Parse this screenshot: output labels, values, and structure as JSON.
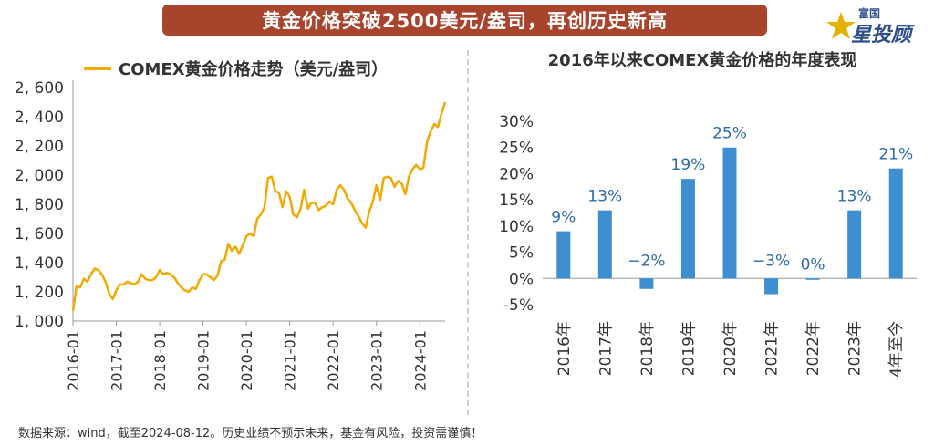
{
  "header": {
    "title": "黄金价格突破2500美元/盎司，再创历史新高"
  },
  "logo": {
    "top_text": "富国",
    "main_text": "星投顾",
    "icon": "star-icon"
  },
  "footer": {
    "note": "数据来源：wind，截至2024-08-12。历史业绩不预示未来，基金有风险，投资需谨慎！"
  },
  "chart_data": [
    {
      "type": "line",
      "title": "",
      "legend": [
        "COMEX黄金价格走势（美元/盎司）"
      ],
      "legend_position": "top",
      "xlabel": "",
      "ylabel": "",
      "ylim": [
        1000,
        2600
      ],
      "yticks": [
        1000,
        1200,
        1400,
        1600,
        1800,
        2000,
        2200,
        2400,
        2600
      ],
      "ytick_labels": [
        "1, 000",
        "1, 200",
        "1, 400",
        "1, 600",
        "1, 800",
        "2, 000",
        "2, 200",
        "2, 400",
        "2, 600"
      ],
      "xticks": [
        "2016-01",
        "2017-01",
        "2018-01",
        "2019-01",
        "2020-01",
        "2021-01",
        "2022-01",
        "2023-01",
        "2024-01"
      ],
      "grid": false,
      "color": "#f2a900",
      "series": [
        {
          "name": "COMEX黄金价格走势（美元/盎司）",
          "x": [
            "2016-01",
            "2016-02",
            "2016-03",
            "2016-04",
            "2016-05",
            "2016-06",
            "2016-07",
            "2016-08",
            "2016-09",
            "2016-10",
            "2016-11",
            "2016-12",
            "2017-01",
            "2017-02",
            "2017-03",
            "2017-04",
            "2017-05",
            "2017-06",
            "2017-07",
            "2017-08",
            "2017-09",
            "2017-10",
            "2017-11",
            "2017-12",
            "2018-01",
            "2018-02",
            "2018-03",
            "2018-04",
            "2018-05",
            "2018-06",
            "2018-07",
            "2018-08",
            "2018-09",
            "2018-10",
            "2018-11",
            "2018-12",
            "2019-01",
            "2019-02",
            "2019-03",
            "2019-04",
            "2019-05",
            "2019-06",
            "2019-07",
            "2019-08",
            "2019-09",
            "2019-10",
            "2019-11",
            "2019-12",
            "2020-01",
            "2020-02",
            "2020-03",
            "2020-04",
            "2020-05",
            "2020-06",
            "2020-07",
            "2020-08",
            "2020-09",
            "2020-10",
            "2020-11",
            "2020-12",
            "2021-01",
            "2021-02",
            "2021-03",
            "2021-04",
            "2021-05",
            "2021-06",
            "2021-07",
            "2021-08",
            "2021-09",
            "2021-10",
            "2021-11",
            "2021-12",
            "2022-01",
            "2022-02",
            "2022-03",
            "2022-04",
            "2022-05",
            "2022-06",
            "2022-07",
            "2022-08",
            "2022-09",
            "2022-10",
            "2022-11",
            "2022-12",
            "2023-01",
            "2023-02",
            "2023-03",
            "2023-04",
            "2023-05",
            "2023-06",
            "2023-07",
            "2023-08",
            "2023-09",
            "2023-10",
            "2023-11",
            "2023-12",
            "2024-01",
            "2024-02",
            "2024-03",
            "2024-04",
            "2024-05",
            "2024-06",
            "2024-07",
            "2024-08"
          ],
          "values": [
            1070,
            1240,
            1230,
            1290,
            1270,
            1320,
            1360,
            1350,
            1320,
            1270,
            1190,
            1150,
            1210,
            1250,
            1250,
            1270,
            1260,
            1250,
            1270,
            1320,
            1290,
            1280,
            1280,
            1300,
            1350,
            1320,
            1330,
            1320,
            1300,
            1260,
            1230,
            1210,
            1200,
            1230,
            1220,
            1280,
            1320,
            1320,
            1300,
            1280,
            1310,
            1410,
            1420,
            1530,
            1480,
            1510,
            1460,
            1520,
            1580,
            1600,
            1580,
            1700,
            1730,
            1780,
            1980,
            1990,
            1890,
            1880,
            1780,
            1890,
            1850,
            1730,
            1710,
            1770,
            1900,
            1770,
            1810,
            1810,
            1760,
            1780,
            1790,
            1820,
            1800,
            1900,
            1930,
            1900,
            1840,
            1810,
            1760,
            1720,
            1670,
            1640,
            1750,
            1820,
            1930,
            1830,
            1980,
            1990,
            1980,
            1920,
            1960,
            1940,
            1870,
            1990,
            2040,
            2070,
            2040,
            2050,
            2230,
            2300,
            2350,
            2330,
            2420,
            2500
          ]
        }
      ]
    },
    {
      "type": "bar",
      "title": "2016年以来COMEX黄金价格的年度表现",
      "categories": [
        "2016年",
        "2017年",
        "2018年",
        "2019年",
        "2020年",
        "2021年",
        "2022年",
        "2023年",
        "4年至今"
      ],
      "values": [
        9,
        13,
        -2,
        19,
        25,
        -3,
        0,
        13,
        21
      ],
      "data_labels": [
        "9%",
        "13%",
        "−2%",
        "19%",
        "25%",
        "−3%",
        "0%",
        "13%",
        "21%"
      ],
      "ylim": [
        -5,
        30
      ],
      "yticks": [
        -5,
        0,
        5,
        10,
        15,
        20,
        25,
        30
      ],
      "ytick_labels": [
        "-5%",
        "0%",
        "5%",
        "10%",
        "15%",
        "20%",
        "25%",
        "30%"
      ],
      "xlabel": "",
      "ylabel": "",
      "grid": false,
      "color": "#3d8fd1"
    }
  ]
}
